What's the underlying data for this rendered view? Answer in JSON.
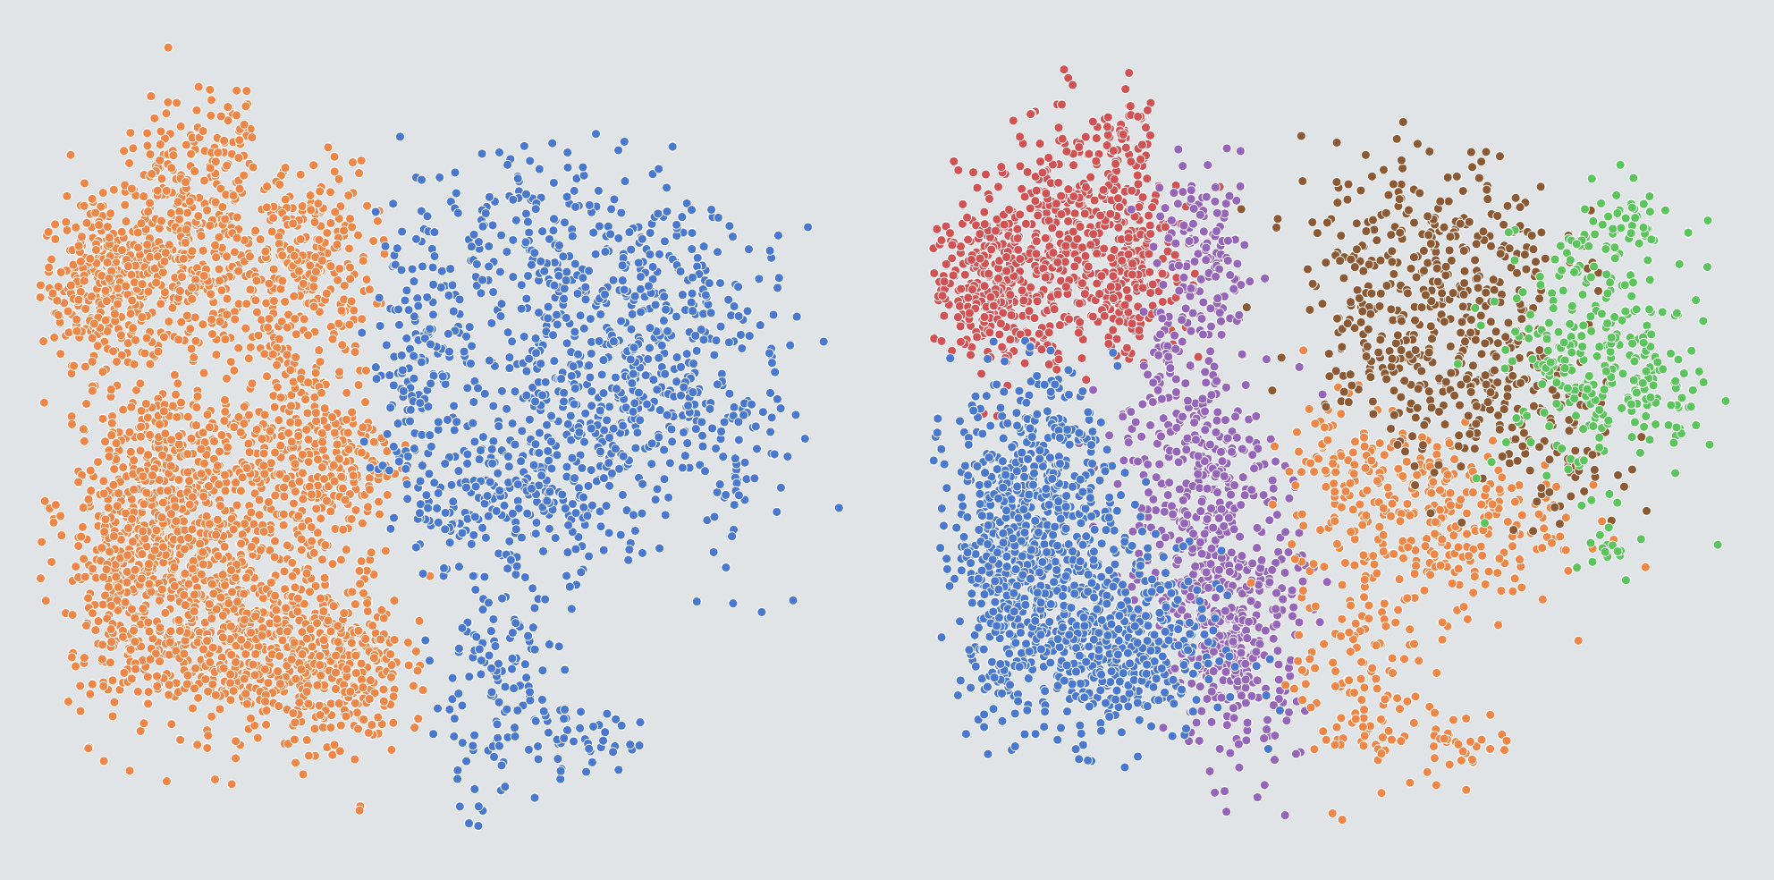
{
  "background_color": "#e1e4e7",
  "chart_data": [
    {
      "type": "scatter",
      "panel": "left",
      "title": "",
      "xlabel": "",
      "ylabel": "",
      "axes_visible": false,
      "grid": false,
      "legend": "none",
      "colors": {
        "orange": "#ee8648",
        "blue": "#4a78cf"
      },
      "xlim": [
        0,
        100
      ],
      "ylim": [
        0,
        100
      ],
      "series": [
        {
          "color_key": "orange",
          "clusters": [
            {
              "cx": 8,
              "cy": 70,
              "sx": 4,
              "sy": 5,
              "n": 320
            },
            {
              "cx": 18,
              "cy": 80,
              "sx": 5,
              "sy": 6,
              "n": 220
            },
            {
              "cx": 20,
              "cy": 69,
              "sx": 5,
              "sy": 5,
              "n": 160
            },
            {
              "cx": 33,
              "cy": 73,
              "sx": 4,
              "sy": 6,
              "n": 240
            },
            {
              "cx": 24,
              "cy": 90,
              "sx": 1.5,
              "sy": 2.5,
              "n": 25
            },
            {
              "cx": 29,
              "cy": 61,
              "sx": 1,
              "sy": 2,
              "n": 20
            },
            {
              "cx": 16,
              "cy": 42,
              "sx": 6,
              "sy": 8,
              "n": 620
            },
            {
              "cx": 34,
              "cy": 48,
              "sx": 5,
              "sy": 7,
              "n": 350
            },
            {
              "cx": 23,
              "cy": 25,
              "sx": 7,
              "sy": 6,
              "n": 520
            },
            {
              "cx": 37,
              "cy": 22,
              "sx": 4,
              "sy": 6,
              "n": 280
            },
            {
              "cx": 10,
              "cy": 30,
              "sx": 3,
              "sy": 8,
              "n": 160
            }
          ]
        },
        {
          "color_key": "blue",
          "clusters": [
            {
              "cx": 70,
              "cy": 57,
              "sx": 9,
              "sy": 9,
              "n": 480
            },
            {
              "cx": 59,
              "cy": 42,
              "sx": 6,
              "sy": 5,
              "n": 200
            },
            {
              "cx": 64,
              "cy": 76,
              "sx": 8,
              "sy": 6,
              "n": 160
            },
            {
              "cx": 80,
              "cy": 70,
              "sx": 6,
              "sy": 5,
              "n": 90
            },
            {
              "cx": 47,
              "cy": 60,
              "sx": 3,
              "sy": 12,
              "n": 170
            },
            {
              "cx": 56,
              "cy": 18,
              "sx": 4,
              "sy": 8,
              "n": 130
            },
            {
              "cx": 66,
              "cy": 12,
              "sx": 4,
              "sy": 2,
              "n": 40
            },
            {
              "cx": 86,
              "cy": 49,
              "sx": 3,
              "sy": 8,
              "n": 60
            }
          ]
        }
      ]
    },
    {
      "type": "scatter",
      "panel": "right",
      "title": "",
      "xlabel": "",
      "ylabel": "",
      "axes_visible": false,
      "grid": false,
      "legend": "none",
      "colors": {
        "red": "#d25254",
        "purple": "#9465b8",
        "blue": "#4a78cf",
        "orange": "#ee8648",
        "brown": "#8b5a35",
        "green": "#5bc45c"
      },
      "xlim": [
        0,
        100
      ],
      "ylim": [
        0,
        100
      ],
      "series": [
        {
          "color_key": "red",
          "clusters": [
            {
              "cx": 8,
              "cy": 70,
              "sx": 4,
              "sy": 5,
              "n": 320
            },
            {
              "cx": 18,
              "cy": 80,
              "sx": 5,
              "sy": 6,
              "n": 220
            },
            {
              "cx": 20,
              "cy": 69,
              "sx": 5,
              "sy": 5,
              "n": 160
            },
            {
              "cx": 26,
              "cy": 73,
              "sx": 3,
              "sy": 6,
              "n": 130
            },
            {
              "cx": 24,
              "cy": 90,
              "sx": 1.5,
              "sy": 2.5,
              "n": 25
            }
          ]
        },
        {
          "color_key": "purple",
          "clusters": [
            {
              "cx": 34,
              "cy": 72,
              "sx": 3,
              "sy": 6,
              "n": 140
            },
            {
              "cx": 29,
              "cy": 61,
              "sx": 1,
              "sy": 2,
              "n": 20
            },
            {
              "cx": 32,
              "cy": 45,
              "sx": 5,
              "sy": 9,
              "n": 330
            },
            {
              "cx": 38,
              "cy": 25,
              "sx": 4,
              "sy": 8,
              "n": 330
            }
          ]
        },
        {
          "color_key": "blue",
          "clusters": [
            {
              "cx": 13,
              "cy": 42,
              "sx": 5,
              "sy": 8,
              "n": 560
            },
            {
              "cx": 22,
              "cy": 24,
              "sx": 7,
              "sy": 6,
              "n": 560
            },
            {
              "cx": 9,
              "cy": 32,
              "sx": 3,
              "sy": 8,
              "n": 150
            }
          ]
        },
        {
          "color_key": "orange",
          "clusters": [
            {
              "cx": 62,
              "cy": 40,
              "sx": 8,
              "sy": 6,
              "n": 290
            },
            {
              "cx": 53,
              "cy": 20,
              "sx": 4,
              "sy": 8,
              "n": 130
            },
            {
              "cx": 51,
              "cy": 48,
              "sx": 3,
              "sy": 4,
              "n": 60
            },
            {
              "cx": 66,
              "cy": 12,
              "sx": 3,
              "sy": 2,
              "n": 30
            }
          ]
        },
        {
          "color_key": "brown",
          "clusters": [
            {
              "cx": 62,
              "cy": 73,
              "sx": 8,
              "sy": 7,
              "n": 290
            },
            {
              "cx": 70,
              "cy": 55,
              "sx": 6,
              "sy": 6,
              "n": 180
            },
            {
              "cx": 56,
              "cy": 62,
              "sx": 5,
              "sy": 5,
              "n": 80
            },
            {
              "cx": 79,
              "cy": 48,
              "sx": 3,
              "sy": 4,
              "n": 40
            }
          ]
        },
        {
          "color_key": "green",
          "clusters": [
            {
              "cx": 82,
              "cy": 61,
              "sx": 6,
              "sy": 8,
              "n": 260
            },
            {
              "cx": 91,
              "cy": 55,
              "sx": 3,
              "sy": 5,
              "n": 40
            },
            {
              "cx": 85,
              "cy": 77,
              "sx": 3,
              "sy": 3,
              "n": 40
            },
            {
              "cx": 84,
              "cy": 36,
              "sx": 2,
              "sy": 2,
              "n": 15
            }
          ]
        }
      ]
    }
  ]
}
